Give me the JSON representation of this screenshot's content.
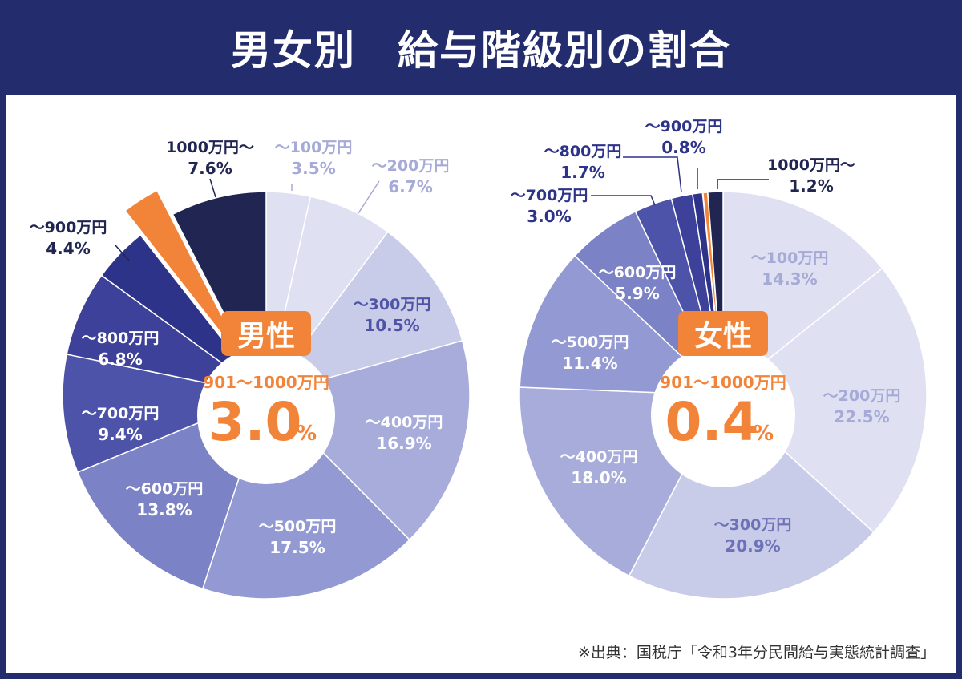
{
  "title": "男女別　給与階級別の割合",
  "source": "※出典：国税庁「令和3年分民間給与実態統計調査」",
  "colors": {
    "navy": "#232d6e",
    "highlight": "#f2843a",
    "scale": [
      "#dfe1f2",
      "#dfe1f2",
      "#c9cce8",
      "#a7acdb",
      "#9399d2",
      "#7b82c5",
      "#4d53a8",
      "#3d4199",
      "#2e338a",
      "#202651"
    ]
  },
  "chart_data": [
    {
      "type": "pie",
      "name": "男性",
      "center_label": "男性",
      "highlight_caption": "901〜1000万円",
      "highlight_value": "3.0",
      "highlight_unit": "%",
      "highlight_index": 9,
      "slices": [
        {
          "label": "〜100万円",
          "value": 3.5
        },
        {
          "label": "〜200万円",
          "value": 6.7
        },
        {
          "label": "〜300万円",
          "value": 10.5
        },
        {
          "label": "〜400万円",
          "value": 16.9
        },
        {
          "label": "〜500万円",
          "value": 17.5
        },
        {
          "label": "〜600万円",
          "value": 13.8
        },
        {
          "label": "〜700万円",
          "value": 9.4
        },
        {
          "label": "〜800万円",
          "value": 6.8
        },
        {
          "label": "〜900万円",
          "value": 4.4
        },
        {
          "label": "901〜1000万円",
          "value": 3.0
        },
        {
          "label": "1000万円〜",
          "value": 7.6
        }
      ]
    },
    {
      "type": "pie",
      "name": "女性",
      "center_label": "女性",
      "highlight_caption": "901〜1000万円",
      "highlight_value": "0.4",
      "highlight_unit": "%",
      "highlight_index": 9,
      "slices": [
        {
          "label": "〜100万円",
          "value": 14.3
        },
        {
          "label": "〜200万円",
          "value": 22.5
        },
        {
          "label": "〜300万円",
          "value": 20.9
        },
        {
          "label": "〜400万円",
          "value": 18.0
        },
        {
          "label": "〜500万円",
          "value": 11.4
        },
        {
          "label": "〜600万円",
          "value": 5.9
        },
        {
          "label": "〜700万円",
          "value": 3.0
        },
        {
          "label": "〜800万円",
          "value": 1.7
        },
        {
          "label": "〜900万円",
          "value": 0.8
        },
        {
          "label": "901〜1000万円",
          "value": 0.4
        },
        {
          "label": "1000万円〜",
          "value": 1.2
        }
      ]
    }
  ]
}
